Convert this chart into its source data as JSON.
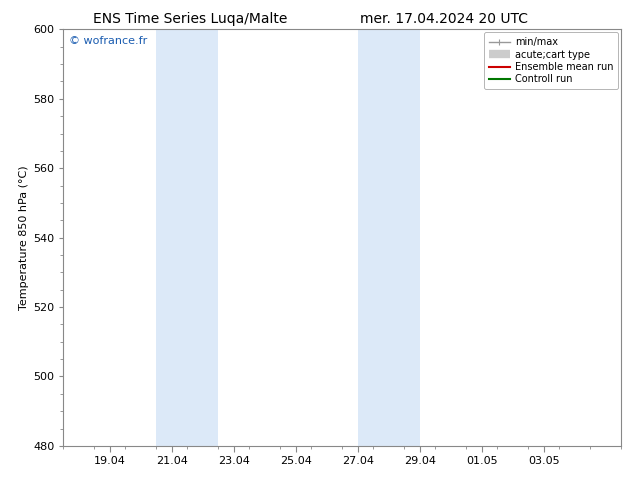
{
  "title_left": "ENS Time Series Luqa/Malte",
  "title_right": "mer. 17.04.2024 20 UTC",
  "ylabel": "Temperature 850 hPa (°C)",
  "ylim": [
    480,
    600
  ],
  "yticks": [
    480,
    500,
    520,
    540,
    560,
    580,
    600
  ],
  "xtick_labels": [
    "19.04",
    "21.04",
    "23.04",
    "25.04",
    "27.04",
    "29.04",
    "01.05",
    "03.05"
  ],
  "xtick_days_offset": [
    1,
    3,
    5,
    7,
    9,
    11,
    13,
    15
  ],
  "xlim": [
    -0.5,
    17.5
  ],
  "shaded_bands": [
    {
      "xstart": 2.5,
      "xend": 4.5
    },
    {
      "xstart": 9.0,
      "xend": 11.0
    }
  ],
  "shaded_color": "#dce9f8",
  "background_color": "#ffffff",
  "watermark_text": "© wofrance.fr",
  "watermark_color": "#1a5cb0",
  "legend_entries": [
    {
      "label": "min/max",
      "color": "#999999",
      "lw": 1.0,
      "style": "caps"
    },
    {
      "label": "acute;cart type",
      "color": "#cccccc",
      "lw": 6,
      "style": "thick"
    },
    {
      "label": "Ensemble mean run",
      "color": "#cc0000",
      "lw": 1.5,
      "style": "line"
    },
    {
      "label": "Controll run",
      "color": "#007700",
      "lw": 1.5,
      "style": "line"
    }
  ],
  "spine_color": "#888888",
  "font_size_title": 10,
  "font_size_axis": 8,
  "font_size_legend": 7,
  "font_size_ticks": 8,
  "font_size_watermark": 8
}
